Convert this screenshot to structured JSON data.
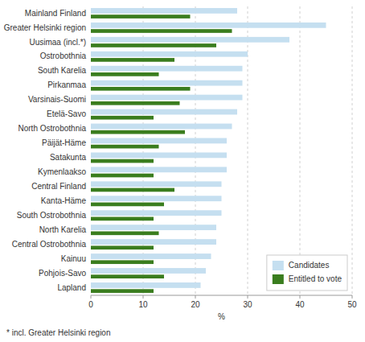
{
  "chart_data": {
    "type": "bar",
    "orientation": "horizontal",
    "categories": [
      "Mainland Finland",
      "Greater Helsinki region",
      "Uusimaa (incl.*)",
      "Ostrobothnia",
      "South Karelia",
      "Pirkanmaa",
      "Varsinais-Suomi",
      "Etelä-Savo",
      "North Ostrobothnia",
      "Päijät-Häme",
      "Satakunta",
      "Kymenlaakso",
      "Central Finland",
      "Kanta-Häme",
      "South Ostrobothnia",
      "North Karelia",
      "Central Ostrobothnia",
      "Kainuu",
      "Pohjois-Savo",
      "Lapland"
    ],
    "series": [
      {
        "name": "Candidates",
        "color": "#c5dff0",
        "values": [
          28,
          45,
          38,
          30,
          29,
          29,
          29,
          28,
          27,
          26,
          26,
          26,
          25,
          25,
          25,
          24,
          24,
          23,
          22,
          21
        ]
      },
      {
        "name": "Entitled to vote",
        "color": "#3a7d1e",
        "values": [
          19,
          27,
          24,
          16,
          13,
          19,
          17,
          12,
          18,
          13,
          12,
          12,
          16,
          14,
          12,
          13,
          12,
          12,
          14,
          12
        ]
      }
    ],
    "xlabel": "%",
    "xlim": [
      0,
      50
    ],
    "xticks": [
      0,
      10,
      20,
      30,
      40,
      50
    ],
    "grid": true,
    "legend": "lower right",
    "annotations": [
      "* incl. Greater Helsinki region"
    ]
  }
}
